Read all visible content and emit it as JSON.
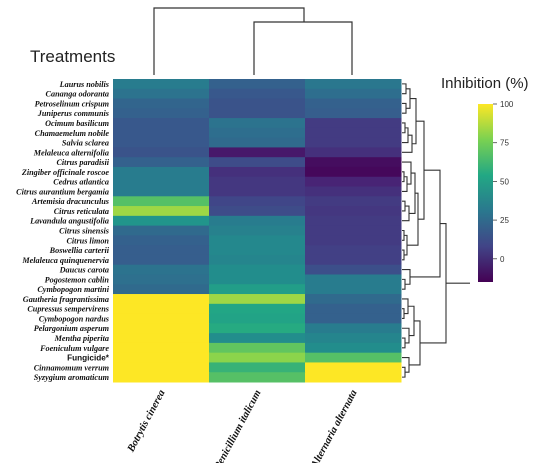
{
  "chart_data": {
    "type": "heatmap",
    "title": "Treatments",
    "legend_title": "Inhibition (%)",
    "colorscale": "viridis",
    "zlim": [
      -15,
      100
    ],
    "colorbar_ticks": [
      "100",
      "75",
      "50",
      "25",
      "0"
    ],
    "colorbar_tick_values": [
      100,
      75,
      50,
      25,
      0
    ],
    "columns": [
      "Botrytis cinerea",
      "Penicillium italicum",
      "Alternaria alternata"
    ],
    "rows": [
      {
        "label": "Laurus nobilis",
        "values": [
          45,
          30,
          42
        ]
      },
      {
        "label": "Cananga odoranta",
        "values": [
          40,
          25,
          37
        ]
      },
      {
        "label": "Petroselinum crispum",
        "values": [
          32,
          22,
          30
        ]
      },
      {
        "label": "Juniperus communis",
        "values": [
          30,
          22,
          28
        ]
      },
      {
        "label": "Ocimum basilicum",
        "values": [
          25,
          40,
          10
        ]
      },
      {
        "label": "Chamaemelum nobile",
        "values": [
          25,
          37,
          10
        ]
      },
      {
        "label": "Salvia sclarea",
        "values": [
          25,
          35,
          10
        ]
      },
      {
        "label": "Melaleuca alternifolia",
        "values": [
          22,
          -5,
          5
        ]
      },
      {
        "label": "Citrus paradisii",
        "values": [
          30,
          18,
          -10
        ]
      },
      {
        "label": "Zingiber officinale roscoe",
        "values": [
          45,
          5,
          -12
        ]
      },
      {
        "label": "Cedrus atlantica",
        "values": [
          45,
          8,
          0
        ]
      },
      {
        "label": "Citrus aurantium bergamia",
        "values": [
          45,
          8,
          5
        ]
      },
      {
        "label": "Artemisia dracunculus",
        "values": [
          80,
          15,
          10
        ]
      },
      {
        "label": "Citrus reticulata",
        "values": [
          90,
          18,
          8
        ]
      },
      {
        "label": "Lavandula angustifolia",
        "values": [
          60,
          45,
          10
        ]
      },
      {
        "label": "Citrus sinensis",
        "values": [
          35,
          48,
          10
        ]
      },
      {
        "label": "Citrus limon",
        "values": [
          30,
          52,
          10
        ]
      },
      {
        "label": "Boswellia carterii",
        "values": [
          28,
          52,
          12
        ]
      },
      {
        "label": "Melaleuca quinquenervia",
        "values": [
          28,
          50,
          12
        ]
      },
      {
        "label": "Daucus carota",
        "values": [
          40,
          55,
          20
        ]
      },
      {
        "label": "Pogostemon cablin",
        "values": [
          38,
          55,
          45
        ]
      },
      {
        "label": "Cymbopogon martini",
        "values": [
          35,
          65,
          45
        ]
      },
      {
        "label": "Gautheria fragrantissima",
        "values": [
          100,
          90,
          35
        ]
      },
      {
        "label": "Cupressus sempervirens",
        "values": [
          100,
          70,
          30
        ]
      },
      {
        "label": "Cymbopogon nardus",
        "values": [
          100,
          68,
          30
        ]
      },
      {
        "label": "Pelargonium asperum",
        "values": [
          100,
          72,
          45
        ]
      },
      {
        "label": "Mentha piperita",
        "values": [
          100,
          55,
          50
        ]
      },
      {
        "label": "Foeniculum vulgare",
        "values": [
          100,
          82,
          55
        ]
      },
      {
        "label": "Fungicide*",
        "values": [
          100,
          88,
          80
        ]
      },
      {
        "label": "Cinnamomum verrum",
        "values": [
          100,
          75,
          100
        ]
      },
      {
        "label": "Syzygium aromaticum",
        "values": [
          100,
          80,
          100
        ]
      }
    ]
  }
}
